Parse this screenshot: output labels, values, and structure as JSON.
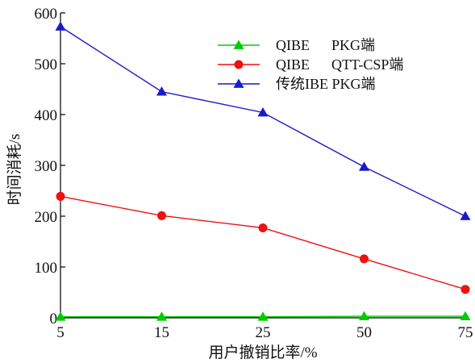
{
  "chart_data": {
    "type": "line",
    "x": [
      "5",
      "15",
      "25",
      "50",
      "75"
    ],
    "xlabel": "用户撤销比率/%",
    "ylabel": "时间消耗/s",
    "ylim": [
      0,
      600
    ],
    "yticks": [
      0,
      100,
      200,
      300,
      400,
      500,
      600
    ],
    "grid": false,
    "legend_position": "top-right",
    "series": [
      {
        "name": "QIBE      PKG端",
        "color": "#00cc00",
        "marker": "triangle",
        "values": [
          2,
          2,
          2,
          3,
          3
        ]
      },
      {
        "name": "QIBE      QTT-CSP端",
        "color": "#ee1111",
        "marker": "circle",
        "values": [
          239,
          201,
          177,
          116,
          56
        ]
      },
      {
        "name": "传统IBE PKG端",
        "color": "#1a1acc",
        "marker": "triangle",
        "values": [
          573,
          445,
          404,
          297,
          200
        ]
      }
    ]
  }
}
